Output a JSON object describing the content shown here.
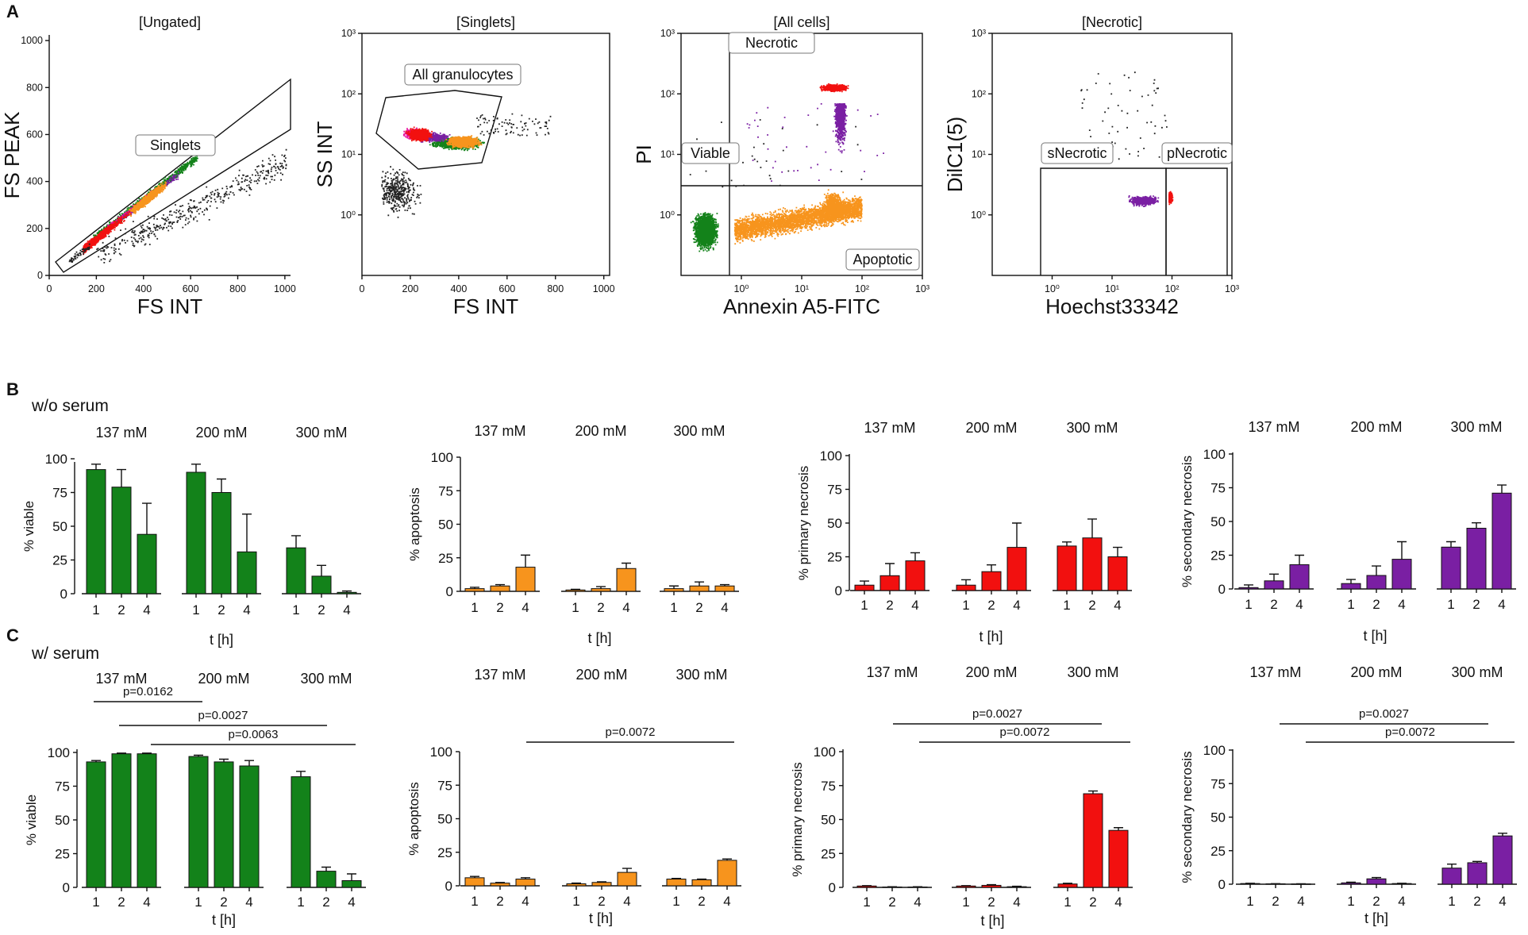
{
  "colors": {
    "viable": "#13821a",
    "apoptosis": "#f7941d",
    "primary": "#f2100f",
    "secondary": "#7a1fa3",
    "events": "#222222",
    "magenta": "#e8119f"
  },
  "panel_letters": {
    "a": "A",
    "b": "B",
    "c": "C"
  },
  "chart_data": [
    {
      "id": "A1",
      "type": "scatter",
      "title": "[Ungated]",
      "xlabel": "FS INT",
      "ylabel": "FS PEAK",
      "xlim": [
        0,
        1024
      ],
      "ylim": [
        0,
        1024
      ],
      "xticks": [
        "0",
        "200",
        "400",
        "600",
        "800",
        "1000"
      ],
      "yticks": [
        "0",
        "200",
        "400",
        "600",
        "800",
        "1000"
      ],
      "gates": [
        "Singlets"
      ]
    },
    {
      "id": "A2",
      "type": "scatter",
      "title": "[Singlets]",
      "xlabel": "FS INT",
      "ylabel": "SS INT",
      "xlim": [
        0,
        1024
      ],
      "ylim": [
        0.1,
        1000
      ],
      "xticks": [
        "0",
        "200",
        "400",
        "600",
        "800",
        "1000"
      ],
      "yticks": [
        "10⁰",
        "10¹",
        "10²",
        "10³"
      ],
      "gates": [
        "All granulocytes"
      ]
    },
    {
      "id": "A3",
      "type": "scatter",
      "title": "[All cells]",
      "xlabel": "Annexin A5-FITC",
      "ylabel": "PI",
      "xlim": [
        0.1,
        1000
      ],
      "ylim": [
        0.1,
        1000
      ],
      "xticks": [
        "10⁰",
        "10¹",
        "10²",
        "10³"
      ],
      "yticks": [
        "10⁰",
        "10¹",
        "10²",
        "10³"
      ],
      "gates": [
        "Necrotic",
        "Viable",
        "Apoptotic"
      ]
    },
    {
      "id": "A4",
      "type": "scatter",
      "title": "[Necrotic]",
      "xlabel": "Hoechst33342",
      "ylabel": "DilC1(5)",
      "xlim": [
        0.1,
        1000
      ],
      "ylim": [
        0.1,
        1000
      ],
      "xticks": [
        "10⁰",
        "10¹",
        "10²",
        "10³"
      ],
      "yticks": [
        "10⁰",
        "10¹",
        "10²",
        "10³"
      ],
      "gates": [
        "sNecrotic",
        "pNecrotic"
      ]
    },
    {
      "id": "B1",
      "type": "bar",
      "condition": "w/o serum",
      "ylabel": "% viable",
      "xlabel": "t [h]",
      "ylim": [
        0,
        100
      ],
      "yticks": [
        "0",
        "25",
        "50",
        "75",
        "100"
      ],
      "groups": [
        "137 mM",
        "200 mM",
        "300 mM"
      ],
      "categories": [
        "1",
        "2",
        "4"
      ],
      "series": [
        {
          "name": "137 mM",
          "values": [
            92,
            79,
            44
          ],
          "errors": [
            4,
            13,
            23
          ]
        },
        {
          "name": "200 mM",
          "values": [
            90,
            75,
            31
          ],
          "errors": [
            6,
            10,
            28
          ]
        },
        {
          "name": "300 mM",
          "values": [
            34,
            13,
            1
          ],
          "errors": [
            9,
            8,
            1
          ]
        }
      ],
      "significance": []
    },
    {
      "id": "B2",
      "type": "bar",
      "condition": "w/o serum",
      "ylabel": "% apoptosis",
      "xlabel": "t [h]",
      "ylim": [
        0,
        100
      ],
      "yticks": [
        "0",
        "25",
        "50",
        "75",
        "100"
      ],
      "groups": [
        "137 mM",
        "200 mM",
        "300 mM"
      ],
      "categories": [
        "1",
        "2",
        "4"
      ],
      "series": [
        {
          "name": "137 mM",
          "values": [
            2,
            4,
            18
          ],
          "errors": [
            1,
            1,
            9
          ]
        },
        {
          "name": "200 mM",
          "values": [
            1,
            2,
            17
          ],
          "errors": [
            0.5,
            1.5,
            4
          ]
        },
        {
          "name": "300 mM",
          "values": [
            2,
            4,
            4
          ],
          "errors": [
            2,
            3,
            1
          ]
        }
      ],
      "significance": []
    },
    {
      "id": "B3",
      "type": "bar",
      "condition": "w/o serum",
      "ylabel": "% primary necrosis",
      "xlabel": "t [h]",
      "ylim": [
        0,
        100
      ],
      "yticks": [
        "0",
        "25",
        "50",
        "75",
        "100"
      ],
      "groups": [
        "137 mM",
        "200 mM",
        "300 mM"
      ],
      "categories": [
        "1",
        "2",
        "4"
      ],
      "series": [
        {
          "name": "137 mM",
          "values": [
            4,
            11,
            22
          ],
          "errors": [
            3,
            9,
            6
          ]
        },
        {
          "name": "200 mM",
          "values": [
            4,
            14,
            32
          ],
          "errors": [
            4,
            5,
            18
          ]
        },
        {
          "name": "300 mM",
          "values": [
            33,
            39,
            25
          ],
          "errors": [
            3,
            14,
            7
          ]
        }
      ],
      "significance": []
    },
    {
      "id": "B4",
      "type": "bar",
      "condition": "w/o serum",
      "ylabel": "% secondary necrosis",
      "xlabel": "t [h]",
      "ylim": [
        0,
        100
      ],
      "yticks": [
        "0",
        "25",
        "50",
        "75",
        "100"
      ],
      "groups": [
        "137 mM",
        "200 mM",
        "300 mM"
      ],
      "categories": [
        "1",
        "2",
        "4"
      ],
      "series": [
        {
          "name": "137 mM",
          "values": [
            1,
            6,
            18
          ],
          "errors": [
            2,
            5,
            7
          ]
        },
        {
          "name": "200 mM",
          "values": [
            4,
            10,
            22
          ],
          "errors": [
            3,
            7,
            13
          ]
        },
        {
          "name": "300 mM",
          "values": [
            31,
            45,
            71
          ],
          "errors": [
            4,
            4,
            6
          ]
        }
      ],
      "significance": []
    },
    {
      "id": "C1",
      "type": "bar",
      "condition": "w/ serum",
      "ylabel": "% viable",
      "xlabel": "t [h]",
      "ylim": [
        0,
        100
      ],
      "yticks": [
        "0",
        "25",
        "50",
        "75",
        "100"
      ],
      "groups": [
        "137 mM",
        "200 mM",
        "300 mM"
      ],
      "categories": [
        "1",
        "2",
        "4"
      ],
      "series": [
        {
          "name": "137 mM",
          "values": [
            93,
            99,
            99
          ],
          "errors": [
            1,
            0.5,
            0.5
          ]
        },
        {
          "name": "200 mM",
          "values": [
            97,
            93,
            90
          ],
          "errors": [
            1,
            2,
            4
          ]
        },
        {
          "name": "300 mM",
          "values": [
            82,
            12,
            5
          ],
          "errors": [
            4,
            3,
            5
          ]
        }
      ],
      "significance": [
        {
          "label": "p=0.0162",
          "from": [
            0,
            0
          ],
          "to": [
            1,
            0
          ]
        },
        {
          "label": "p=0.0027",
          "from": [
            0,
            1
          ],
          "to": [
            2,
            1
          ]
        },
        {
          "label": "p=0.0063",
          "from": [
            0,
            2
          ],
          "to": [
            2,
            2
          ]
        }
      ]
    },
    {
      "id": "C2",
      "type": "bar",
      "condition": "w/ serum",
      "ylabel": "% apoptosis",
      "xlabel": "t [h]",
      "ylim": [
        0,
        100
      ],
      "yticks": [
        "0",
        "25",
        "50",
        "75",
        "100"
      ],
      "groups": [
        "137 mM",
        "200 mM",
        "300 mM"
      ],
      "categories": [
        "1",
        "2",
        "4"
      ],
      "series": [
        {
          "name": "137 mM",
          "values": [
            6,
            2,
            5
          ],
          "errors": [
            1,
            0.5,
            1
          ]
        },
        {
          "name": "200 mM",
          "values": [
            1.5,
            2.5,
            10
          ],
          "errors": [
            0.5,
            0.5,
            3
          ]
        },
        {
          "name": "300 mM",
          "values": [
            5,
            4.5,
            19
          ],
          "errors": [
            0.5,
            0.5,
            1
          ]
        }
      ],
      "significance": [
        {
          "label": "p=0.0072",
          "from": [
            0,
            2
          ],
          "to": [
            2,
            2
          ]
        }
      ]
    },
    {
      "id": "C3",
      "type": "bar",
      "condition": "w/ serum",
      "ylabel": "% primary necrosis",
      "xlabel": "t [h]",
      "ylim": [
        0,
        100
      ],
      "yticks": [
        "0",
        "25",
        "50",
        "75",
        "100"
      ],
      "groups": [
        "137 mM",
        "200 mM",
        "300 mM"
      ],
      "categories": [
        "1",
        "2",
        "4"
      ],
      "series": [
        {
          "name": "137 mM",
          "values": [
            1,
            0.3,
            0.3
          ],
          "errors": [
            0.3,
            0.2,
            0.2
          ]
        },
        {
          "name": "200 mM",
          "values": [
            1,
            1.5,
            0.5
          ],
          "errors": [
            0.3,
            0.5,
            0.3
          ]
        },
        {
          "name": "300 mM",
          "values": [
            2.5,
            69,
            42
          ],
          "errors": [
            0.5,
            2,
            2
          ]
        }
      ],
      "significance": [
        {
          "label": "p=0.0027",
          "from": [
            0,
            1
          ],
          "to": [
            2,
            1
          ]
        },
        {
          "label": "p=0.0072",
          "from": [
            0,
            2
          ],
          "to": [
            2,
            2
          ]
        }
      ]
    },
    {
      "id": "C4",
      "type": "bar",
      "condition": "w/ serum",
      "ylabel": "% secondary necrosis",
      "xlabel": "t [h]",
      "ylim": [
        0,
        100
      ],
      "yticks": [
        "0",
        "25",
        "50",
        "75",
        "100"
      ],
      "groups": [
        "137 mM",
        "200 mM",
        "300 mM"
      ],
      "categories": [
        "1",
        "2",
        "4"
      ],
      "series": [
        {
          "name": "137 mM",
          "values": [
            0.5,
            0.3,
            0.2
          ],
          "errors": [
            0.2,
            0.1,
            0.1
          ]
        },
        {
          "name": "200 mM",
          "values": [
            1,
            4,
            0.5
          ],
          "errors": [
            0.5,
            1,
            0.2
          ]
        },
        {
          "name": "300 mM",
          "values": [
            12,
            16,
            36
          ],
          "errors": [
            3,
            1,
            2
          ]
        }
      ],
      "significance": [
        {
          "label": "p=0.0027",
          "from": [
            0,
            1
          ],
          "to": [
            2,
            1
          ]
        },
        {
          "label": "p=0.0072",
          "from": [
            0,
            2
          ],
          "to": [
            2,
            2
          ]
        }
      ]
    }
  ]
}
